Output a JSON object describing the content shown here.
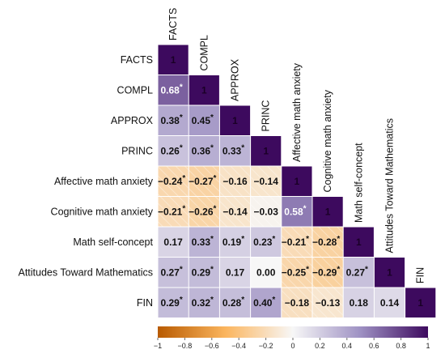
{
  "chart_data": {
    "type": "heatmap",
    "variables": [
      "FACTS",
      "COMPL",
      "APPROX",
      "PRINC",
      "Affective math anxiety",
      "Cognitive math anxiety",
      "Math self-concept",
      "Attitudes Toward Mathematics",
      "FIN"
    ],
    "diagonal_label": "1",
    "significance_marker": "*",
    "lower_triangle": [
      [],
      [
        {
          "v": 0.68,
          "t": "0.68",
          "sig": true
        }
      ],
      [
        {
          "v": 0.38,
          "t": "0.38",
          "sig": true
        },
        {
          "v": 0.45,
          "t": "0.45",
          "sig": true
        }
      ],
      [
        {
          "v": 0.26,
          "t": "0.26",
          "sig": true
        },
        {
          "v": 0.36,
          "t": "0.36",
          "sig": true
        },
        {
          "v": 0.33,
          "t": "0.33",
          "sig": true
        }
      ],
      [
        {
          "v": -0.24,
          "t": "−0.24",
          "sig": true
        },
        {
          "v": -0.27,
          "t": "−0.27",
          "sig": true
        },
        {
          "v": -0.16,
          "t": "−0.16",
          "sig": false
        },
        {
          "v": -0.14,
          "t": "−0.14",
          "sig": false
        }
      ],
      [
        {
          "v": -0.21,
          "t": "−0.21",
          "sig": true
        },
        {
          "v": -0.26,
          "t": "−0.26",
          "sig": true
        },
        {
          "v": -0.14,
          "t": "−0.14",
          "sig": false
        },
        {
          "v": -0.03,
          "t": "−0.03",
          "sig": false
        },
        {
          "v": 0.58,
          "t": "0.58",
          "sig": true
        }
      ],
      [
        {
          "v": 0.17,
          "t": "0.17",
          "sig": false
        },
        {
          "v": 0.33,
          "t": "0.33",
          "sig": true
        },
        {
          "v": 0.19,
          "t": "0.19",
          "sig": true
        },
        {
          "v": 0.23,
          "t": "0.23",
          "sig": true
        },
        {
          "v": -0.21,
          "t": "−0.21",
          "sig": true
        },
        {
          "v": -0.28,
          "t": "−0.28",
          "sig": true
        }
      ],
      [
        {
          "v": 0.27,
          "t": "0.27",
          "sig": true
        },
        {
          "v": 0.29,
          "t": "0.29",
          "sig": true
        },
        {
          "v": 0.17,
          "t": "0.17",
          "sig": false
        },
        {
          "v": 0.0,
          "t": "0.00",
          "sig": false
        },
        {
          "v": -0.25,
          "t": "−0.25",
          "sig": true
        },
        {
          "v": -0.29,
          "t": "−0.29",
          "sig": true
        },
        {
          "v": 0.27,
          "t": "0.27",
          "sig": true
        }
      ],
      [
        {
          "v": 0.29,
          "t": "0.29",
          "sig": true
        },
        {
          "v": 0.32,
          "t": "0.32",
          "sig": true
        },
        {
          "v": 0.28,
          "t": "0.28",
          "sig": true
        },
        {
          "v": 0.4,
          "t": "0.40",
          "sig": true
        },
        {
          "v": -0.18,
          "t": "−0.18",
          "sig": false
        },
        {
          "v": -0.13,
          "t": "−0.13",
          "sig": false
        },
        {
          "v": 0.18,
          "t": "0.18",
          "sig": false
        },
        {
          "v": 0.14,
          "t": "0.14",
          "sig": false
        }
      ]
    ],
    "colorbar": {
      "min": -1,
      "max": 1,
      "ticks": [
        -1,
        -0.8,
        -0.6,
        -0.4,
        -0.2,
        0,
        0.2,
        0.4,
        0.6,
        0.8,
        1
      ],
      "tick_labels": [
        "−1",
        "−0.8",
        "−0.6",
        "−0.4",
        "−0.2",
        "0",
        "0.2",
        "0.4",
        "0.6",
        "0.8",
        "1"
      ]
    },
    "colors": {
      "negative_end": "#b85a00",
      "negative_mid": "#fbb55e",
      "neutral": "#f7f7f7",
      "positive_mid": "#9e91c3",
      "positive_end": "#3d0a5e",
      "diagonal": "#3d0a5e"
    }
  }
}
